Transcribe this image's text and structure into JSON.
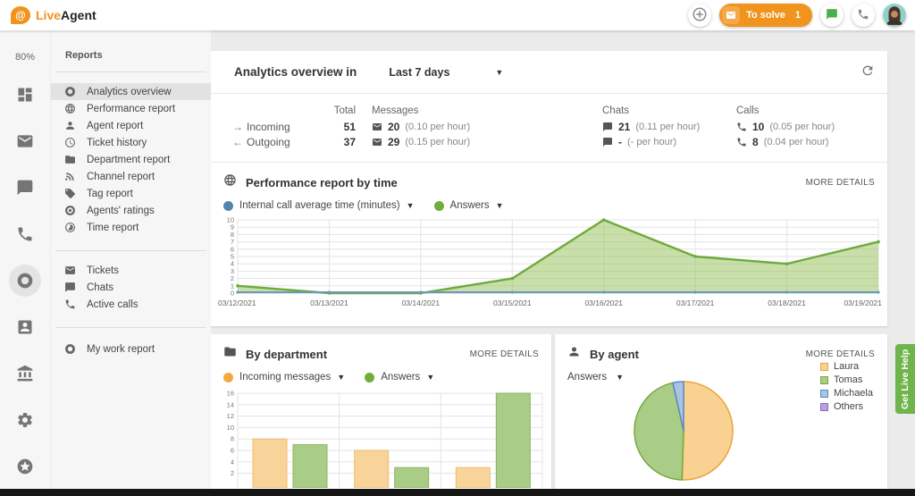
{
  "topbar": {
    "logo_live": "Live",
    "logo_agent": "Agent",
    "logo_symbol": "@",
    "to_solve_label": "To solve",
    "to_solve_count": "1",
    "accent_color": "#f0941e"
  },
  "rail": {
    "availability": "80%",
    "items": [
      {
        "icon": "dashboard-icon"
      },
      {
        "icon": "envelope-icon"
      },
      {
        "icon": "chat-icon"
      },
      {
        "icon": "phone-icon"
      },
      {
        "icon": "donut-icon",
        "active": true
      },
      {
        "icon": "contacts-icon"
      },
      {
        "icon": "bank-icon"
      },
      {
        "icon": "gear-icon"
      },
      {
        "icon": "star-circle-icon"
      }
    ]
  },
  "sidebar": {
    "title": "Reports",
    "items": [
      {
        "label": "Analytics overview",
        "icon": "donut",
        "active": true
      },
      {
        "label": "Performance report",
        "icon": "globe"
      },
      {
        "label": "Agent report",
        "icon": "person"
      },
      {
        "label": "Ticket history",
        "icon": "clock"
      },
      {
        "label": "Department report",
        "icon": "folder"
      },
      {
        "label": "Channel report",
        "icon": "rss"
      },
      {
        "label": "Tag report",
        "icon": "tag"
      },
      {
        "label": "Agents' ratings",
        "icon": "target"
      },
      {
        "label": "Time report",
        "icon": "timelapse"
      }
    ],
    "items2": [
      {
        "label": "Tickets",
        "icon": "envelope"
      },
      {
        "label": "Chats",
        "icon": "chat"
      },
      {
        "label": "Active calls",
        "icon": "phone"
      }
    ],
    "items3": [
      {
        "label": "My work report",
        "icon": "donut"
      }
    ]
  },
  "header": {
    "title": "Analytics overview in",
    "range": "Last 7 days"
  },
  "stats": {
    "columns": [
      "Total",
      "Messages",
      "Chats",
      "Calls"
    ],
    "rows": [
      {
        "dir": "→",
        "label": "Incoming",
        "total": "51",
        "messages": {
          "value": "20",
          "rate": "(0.10 per hour)"
        },
        "chats": {
          "value": "21",
          "rate": "(0.11 per hour)"
        },
        "calls": {
          "value": "10",
          "rate": "(0.05 per hour)"
        }
      },
      {
        "dir": "←",
        "label": "Outgoing",
        "total": "37",
        "messages": {
          "value": "29",
          "rate": "(0.15 per hour)"
        },
        "chats": {
          "value": "-",
          "rate": "(- per hour)"
        },
        "calls": {
          "value": "8",
          "rate": "(0.04 per hour)"
        }
      }
    ]
  },
  "performance": {
    "title": "Performance report by time",
    "more": "MORE DETAILS",
    "legend": [
      {
        "label": "Internal call average time (minutes)",
        "color": "#4f87aa"
      },
      {
        "label": "Answers",
        "color": "#6fae3a"
      }
    ]
  },
  "department": {
    "title": "By department",
    "more": "MORE DETAILS",
    "legend": [
      {
        "label": "Incoming messages",
        "color": "#f2a93b"
      },
      {
        "label": "Answers",
        "color": "#6fae3a"
      }
    ]
  },
  "agent": {
    "title": "By agent",
    "more": "MORE DETAILS",
    "dropdown": "Answers"
  },
  "help_tab": "Get Live Help",
  "chart_data": [
    {
      "type": "area",
      "title": "Performance report by time",
      "x": [
        "03/12/2021",
        "03/13/2021",
        "03/14/2021",
        "03/15/2021",
        "03/16/2021",
        "03/17/2021",
        "03/18/2021",
        "03/19/2021"
      ],
      "series": [
        {
          "name": "Internal call average time (minutes)",
          "color": "#6b9ab8",
          "values": [
            0,
            0,
            0,
            0,
            0,
            0,
            0,
            0
          ]
        },
        {
          "name": "Answers",
          "color": "#6faa3d",
          "fill": "#9ac565",
          "values": [
            1,
            0,
            0,
            2,
            10,
            5,
            4,
            7
          ]
        }
      ],
      "xlabel": "",
      "ylabel": "",
      "ylim": [
        0,
        10
      ],
      "ytick": 1,
      "grid": true,
      "legend_position": "top-left"
    },
    {
      "type": "bar",
      "title": "By department",
      "categories": [
        "",
        "",
        ""
      ],
      "series": [
        {
          "name": "Incoming messages",
          "color": "#f8d49a",
          "border": "#f0bc6a",
          "values": [
            8,
            6,
            3
          ]
        },
        {
          "name": "Answers",
          "color": "#a9cd86",
          "border": "#8ab55f",
          "values": [
            7,
            3,
            16
          ]
        }
      ],
      "xlabel": "",
      "ylabel": "",
      "ylim": [
        0,
        16
      ],
      "ytick": 2,
      "grid": true,
      "legend_position": "top-left"
    },
    {
      "type": "pie",
      "title": "By agent",
      "labels": [
        "Laura",
        "Tomas",
        "Michaela",
        "Others"
      ],
      "values": [
        50.5,
        46,
        3.5,
        0
      ],
      "colors": [
        "#f8d193",
        "#a9cd86",
        "#a7c4e4",
        "#b9a1dc"
      ],
      "borders": [
        "#eda33c",
        "#74a83c",
        "#5d88c4",
        "#8d6cc3"
      ],
      "legend_position": "right"
    }
  ]
}
